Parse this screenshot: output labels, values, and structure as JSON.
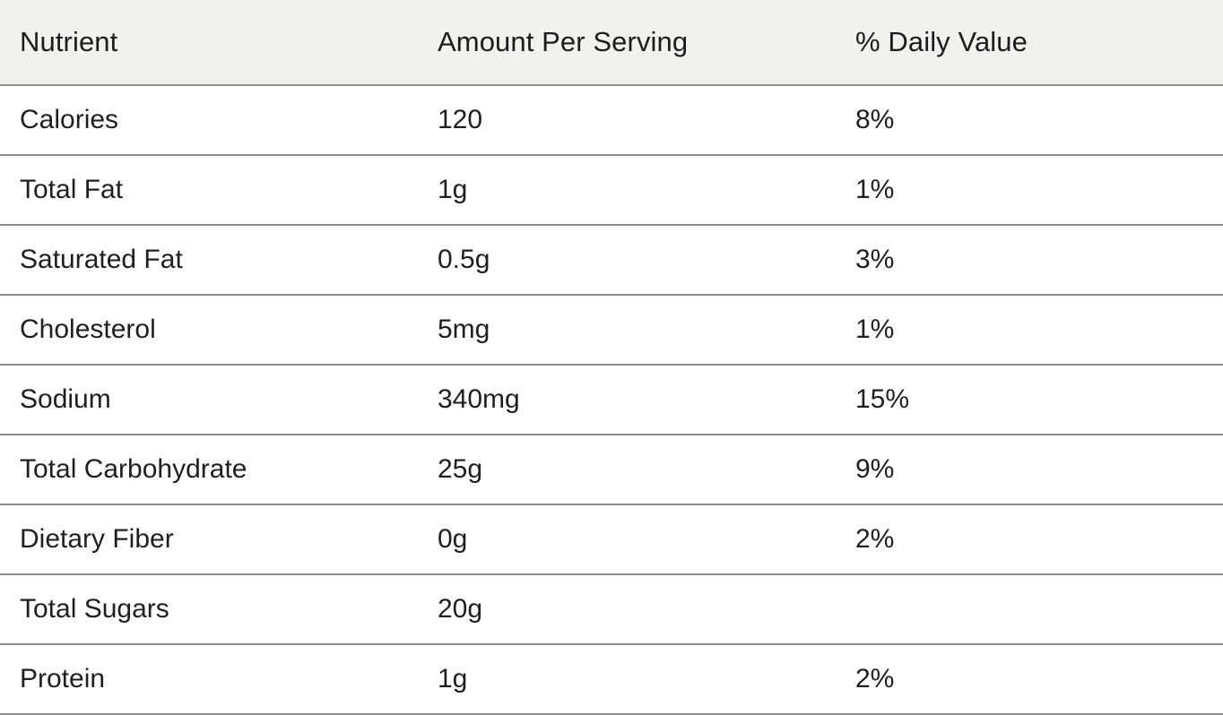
{
  "table": {
    "headers": [
      "Nutrient",
      "Amount Per Serving",
      "% Daily Value"
    ],
    "rows": [
      [
        "Calories",
        "120",
        "8%"
      ],
      [
        "Total Fat",
        "1g",
        "1%"
      ],
      [
        "Saturated Fat",
        "0.5g",
        "3%"
      ],
      [
        "Cholesterol",
        "5mg",
        "1%"
      ],
      [
        "Sodium",
        "340mg",
        "15%"
      ],
      [
        "Total Carbohydrate",
        "25g",
        "9%"
      ],
      [
        "Dietary Fiber",
        "0g",
        "2%"
      ],
      [
        "Total Sugars",
        "20g",
        ""
      ],
      [
        "Protein",
        "1g",
        "2%"
      ]
    ]
  },
  "colors": {
    "header_background": "#f1f1ee",
    "divider": "#8e8e8e",
    "text": "#1f1f1f"
  }
}
